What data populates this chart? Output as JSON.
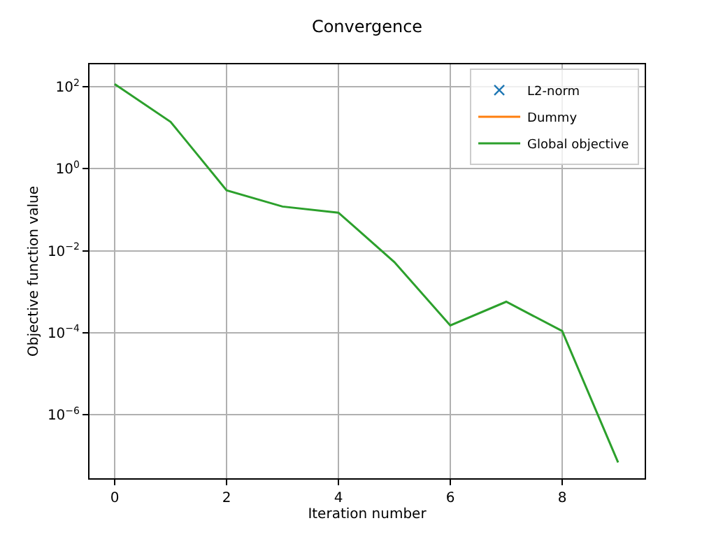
{
  "chart_data": {
    "type": "line",
    "title": "Convergence",
    "xlabel": "Iteration number",
    "ylabel": "Objective function value",
    "x": [
      0,
      1,
      2,
      3,
      4,
      5,
      6,
      7,
      8,
      9
    ],
    "series": [
      {
        "name": "L2-norm",
        "color": "#1f77b4",
        "marker": "cross",
        "line_style": "none",
        "values": [
          null,
          null,
          null,
          null,
          null,
          null,
          null,
          null,
          null,
          null
        ]
      },
      {
        "name": "Dummy",
        "color": "#ff7f0e",
        "values": [
          null,
          null,
          null,
          null,
          null,
          null,
          null,
          null,
          null,
          null
        ]
      },
      {
        "name": "Global objective",
        "color": "#2ca02c",
        "values": [
          117,
          14,
          0.3,
          0.12,
          0.085,
          0.0053,
          0.00015,
          0.00057,
          0.00011,
          6.8e-08
        ]
      }
    ],
    "log": "y",
    "xlim": [
      -0.45,
      9.475
    ],
    "ylim": [
      2.8e-08,
      355
    ],
    "xticks": [
      0,
      2,
      4,
      6,
      8
    ],
    "yticks": [
      {
        "value": 1e-06,
        "label": "10$^{−6}$"
      },
      {
        "value": 0.0001,
        "label": "10$^{−4}$"
      },
      {
        "value": 0.01,
        "label": "10$^{−2}$"
      },
      {
        "value": 1,
        "label": "10$^{0}$"
      },
      {
        "value": 100,
        "label": "10$^{2}$"
      }
    ],
    "grid": true,
    "legend": "top right"
  }
}
